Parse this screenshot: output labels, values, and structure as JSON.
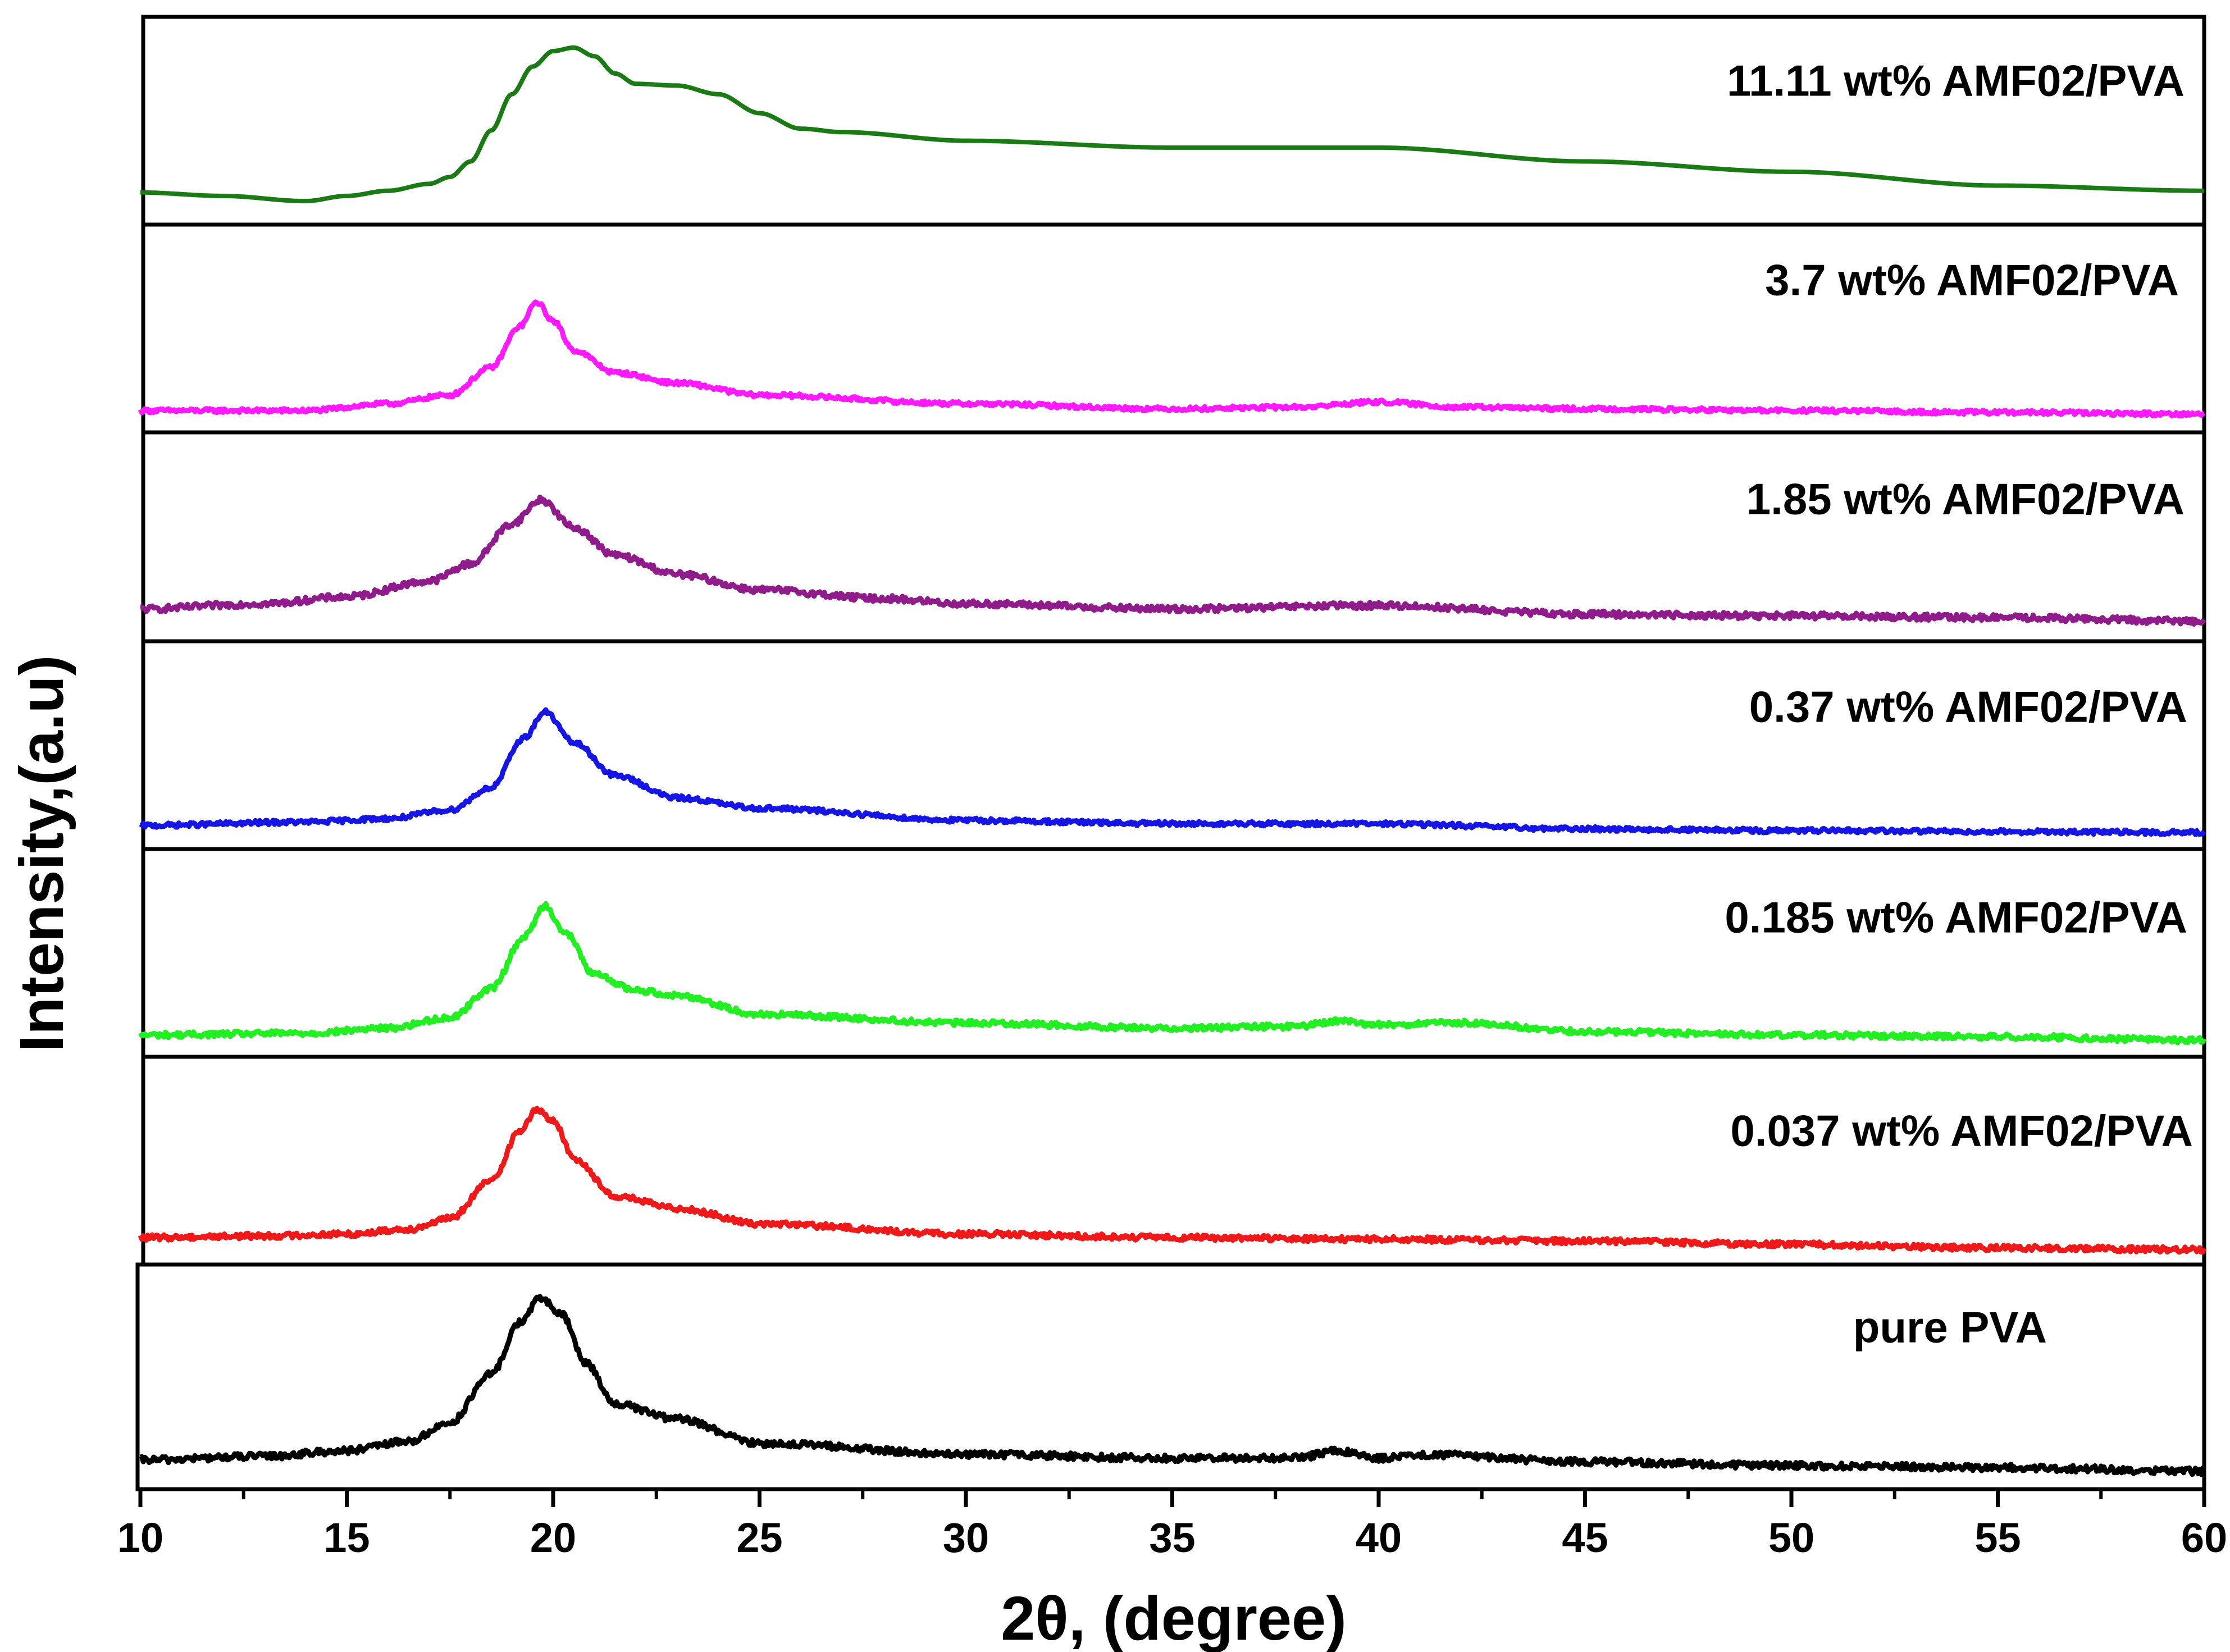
{
  "chart_data": {
    "type": "line",
    "title": "",
    "xlabel": "2θ,  (degree)",
    "ylabel": "Intensity,(a.u)",
    "xlim": [
      10,
      60
    ],
    "x_ticks": [
      "10",
      "15",
      "20",
      "25",
      "30",
      "35",
      "40",
      "45",
      "50",
      "55",
      "60"
    ],
    "y_ticks": [],
    "stacked_panels": true,
    "series": [
      {
        "name": "11.11 wt% AMF02/PVA",
        "color": "#1a7a14",
        "noise": 0,
        "points": [
          [
            10,
            0.09
          ],
          [
            12,
            0.07
          ],
          [
            14,
            0.04
          ],
          [
            15,
            0.07
          ],
          [
            16,
            0.1
          ],
          [
            17,
            0.14
          ],
          [
            17.5,
            0.18
          ],
          [
            18,
            0.27
          ],
          [
            18.5,
            0.45
          ],
          [
            19,
            0.66
          ],
          [
            19.5,
            0.82
          ],
          [
            20,
            0.91
          ],
          [
            20.5,
            0.93
          ],
          [
            21,
            0.88
          ],
          [
            21.5,
            0.78
          ],
          [
            22,
            0.72
          ],
          [
            23,
            0.71
          ],
          [
            24,
            0.66
          ],
          [
            25,
            0.55
          ],
          [
            26,
            0.46
          ],
          [
            27,
            0.44
          ],
          [
            30,
            0.39
          ],
          [
            35,
            0.35
          ],
          [
            40,
            0.35
          ],
          [
            45,
            0.27
          ],
          [
            50,
            0.21
          ],
          [
            55,
            0.13
          ],
          [
            60,
            0.1
          ]
        ]
      },
      {
        "name": "3.7 wt% AMF02/PVA",
        "color": "#ff19ff",
        "noise": 0.012,
        "points": [
          [
            10,
            0.03
          ],
          [
            14,
            0.03
          ],
          [
            16,
            0.07
          ],
          [
            17.5,
            0.12
          ],
          [
            18.5,
            0.28
          ],
          [
            19.2,
            0.52
          ],
          [
            19.6,
            0.66
          ],
          [
            20,
            0.55
          ],
          [
            20.5,
            0.38
          ],
          [
            21.5,
            0.25
          ],
          [
            23,
            0.19
          ],
          [
            25,
            0.12
          ],
          [
            30,
            0.07
          ],
          [
            35,
            0.04
          ],
          [
            38,
            0.05
          ],
          [
            40,
            0.08
          ],
          [
            42,
            0.05
          ],
          [
            45,
            0.04
          ],
          [
            50,
            0.03
          ],
          [
            55,
            0.02
          ],
          [
            60,
            0.01
          ]
        ]
      },
      {
        "name": "1.85 wt% AMF02/PVA",
        "color": "#901c8c",
        "noise": 0.018,
        "points": [
          [
            10,
            0.09
          ],
          [
            13,
            0.12
          ],
          [
            15,
            0.16
          ],
          [
            17,
            0.25
          ],
          [
            18,
            0.35
          ],
          [
            19,
            0.58
          ],
          [
            19.7,
            0.72
          ],
          [
            20.5,
            0.56
          ],
          [
            21.5,
            0.4
          ],
          [
            23,
            0.29
          ],
          [
            25,
            0.2
          ],
          [
            28,
            0.15
          ],
          [
            30,
            0.12
          ],
          [
            35,
            0.09
          ],
          [
            40,
            0.11
          ],
          [
            45,
            0.06
          ],
          [
            50,
            0.05
          ],
          [
            55,
            0.04
          ],
          [
            60,
            0.02
          ]
        ]
      },
      {
        "name": "0.37 wt% AMF02/PVA",
        "color": "#1515e6",
        "noise": 0.013,
        "points": [
          [
            10,
            0.04
          ],
          [
            14,
            0.06
          ],
          [
            16,
            0.08
          ],
          [
            17.5,
            0.13
          ],
          [
            18.5,
            0.26
          ],
          [
            19.3,
            0.55
          ],
          [
            19.8,
            0.7
          ],
          [
            20.5,
            0.52
          ],
          [
            21.5,
            0.33
          ],
          [
            23,
            0.2
          ],
          [
            25,
            0.14
          ],
          [
            30,
            0.07
          ],
          [
            35,
            0.05
          ],
          [
            40,
            0.05
          ],
          [
            45,
            0.02
          ],
          [
            50,
            0.01
          ],
          [
            60,
            0
          ]
        ]
      },
      {
        "name": "0.185 wt% AMF02/PVA",
        "color": "#22ef22",
        "noise": 0.016,
        "points": [
          [
            10,
            0.03
          ],
          [
            14,
            0.04
          ],
          [
            16,
            0.07
          ],
          [
            17.5,
            0.13
          ],
          [
            18.5,
            0.3
          ],
          [
            19.3,
            0.6
          ],
          [
            19.8,
            0.78
          ],
          [
            20.3,
            0.62
          ],
          [
            21,
            0.38
          ],
          [
            22,
            0.29
          ],
          [
            23,
            0.26
          ],
          [
            25,
            0.15
          ],
          [
            30,
            0.1
          ],
          [
            35,
            0.07
          ],
          [
            38,
            0.08
          ],
          [
            39,
            0.11
          ],
          [
            40,
            0.09
          ],
          [
            42,
            0.1
          ],
          [
            45,
            0.05
          ],
          [
            50,
            0.03
          ],
          [
            55,
            0.02
          ],
          [
            60,
            0
          ]
        ]
      },
      {
        "name": "0.037 wt% AMF02/PVA",
        "color": "#ef1919",
        "noise": 0.016,
        "points": [
          [
            10,
            0.06
          ],
          [
            13,
            0.07
          ],
          [
            15,
            0.08
          ],
          [
            16.5,
            0.11
          ],
          [
            17.5,
            0.17
          ],
          [
            18.5,
            0.39
          ],
          [
            19.2,
            0.68
          ],
          [
            19.6,
            0.8
          ],
          [
            20,
            0.74
          ],
          [
            20.5,
            0.52
          ],
          [
            21.5,
            0.3
          ],
          [
            23,
            0.23
          ],
          [
            25,
            0.14
          ],
          [
            30,
            0.08
          ],
          [
            35,
            0.06
          ],
          [
            40,
            0.05
          ],
          [
            45,
            0.04
          ],
          [
            50,
            0.02
          ],
          [
            55,
            0
          ],
          [
            60,
            -0.01
          ]
        ]
      },
      {
        "name": "pure PVA",
        "color": "#000000",
        "noise": 0.018,
        "points": [
          [
            10,
            0.06
          ],
          [
            13,
            0.08
          ],
          [
            15,
            0.11
          ],
          [
            16.5,
            0.16
          ],
          [
            17.5,
            0.26
          ],
          [
            18.5,
            0.52
          ],
          [
            19.2,
            0.8
          ],
          [
            19.7,
            0.93
          ],
          [
            20.2,
            0.84
          ],
          [
            20.8,
            0.58
          ],
          [
            21.5,
            0.36
          ],
          [
            23,
            0.28
          ],
          [
            25,
            0.15
          ],
          [
            30,
            0.09
          ],
          [
            35,
            0.07
          ],
          [
            38,
            0.07
          ],
          [
            39,
            0.11
          ],
          [
            40,
            0.07
          ],
          [
            41,
            0.09
          ],
          [
            45,
            0.05
          ],
          [
            50,
            0.03
          ],
          [
            55,
            0.02
          ],
          [
            60,
            0
          ]
        ]
      }
    ]
  }
}
